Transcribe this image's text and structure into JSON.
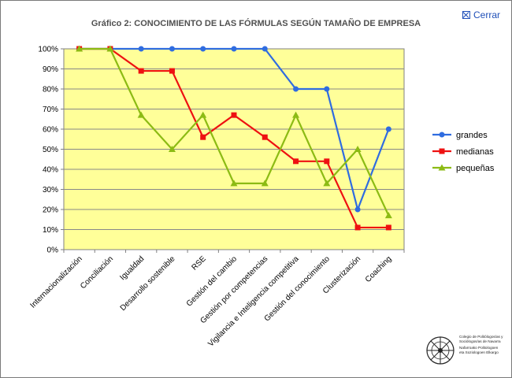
{
  "window": {
    "close_label": "Cerrar"
  },
  "chart_data": {
    "type": "line",
    "title": "Gráfico 2: CONOCIMIENTO DE LAS FÓRMULAS SEGÚN TAMAÑO DE EMPRESA",
    "categories": [
      "Internacionalización",
      "Conciliación",
      "Igualdad",
      "Desarrollo sostenible",
      "RSE",
      "Gestión del cambio",
      "Gestión por competencias",
      "Vigilancia e Inteligencia competitiva",
      "Gestión del conocimiento",
      "Clusterización",
      "Coaching"
    ],
    "series": [
      {
        "name": "grandes",
        "color": "#2f6ce0",
        "marker": "circle",
        "values": [
          100,
          100,
          100,
          100,
          100,
          100,
          100,
          80,
          80,
          20,
          60
        ]
      },
      {
        "name": "medianas",
        "color": "#ee1111",
        "marker": "square",
        "values": [
          100,
          100,
          89,
          89,
          56,
          67,
          56,
          44,
          44,
          11,
          11
        ]
      },
      {
        "name": "pequeñas",
        "color": "#8cbb14",
        "marker": "triangle",
        "values": [
          100,
          100,
          67,
          50,
          67,
          33,
          33,
          67,
          33,
          50,
          17
        ]
      }
    ],
    "y_ticks": [
      "0%",
      "10%",
      "20%",
      "30%",
      "40%",
      "50%",
      "60%",
      "70%",
      "80%",
      "90%",
      "100%"
    ],
    "ylim": [
      0,
      100
    ],
    "grid": true,
    "plot_background": "#ffff99",
    "legend_position": "right"
  },
  "logo": {
    "lines": [
      "Colegio de Politólogos/as y",
      "Sociólogos/as de Navarra",
      "",
      "Nafarroako Politologoen",
      "eta Soziologoen Elkargo"
    ]
  }
}
